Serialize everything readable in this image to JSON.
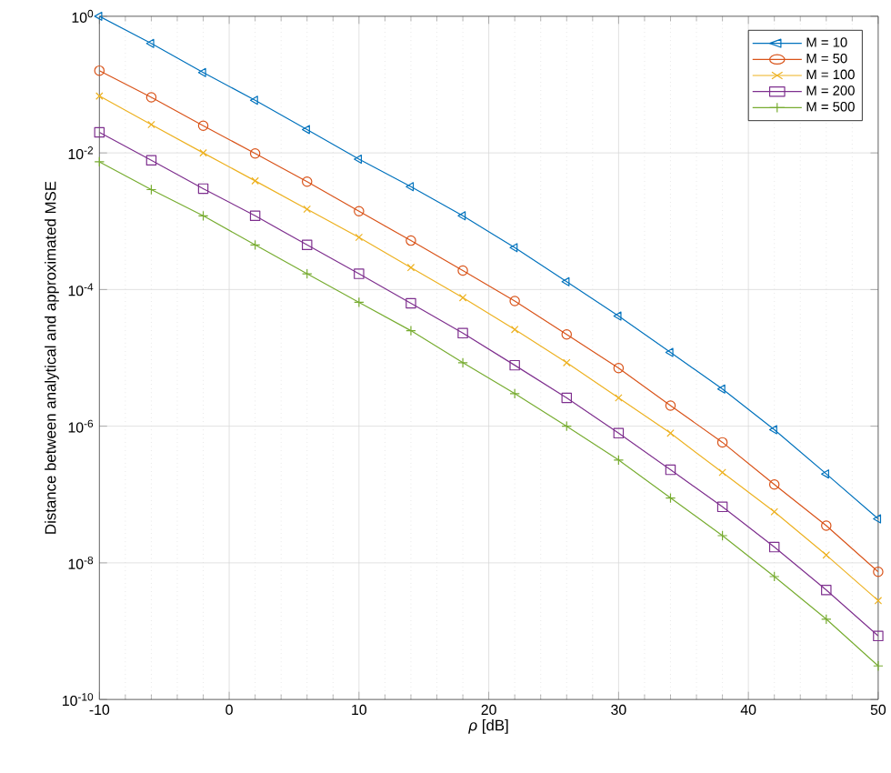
{
  "chart_data": {
    "type": "line",
    "xlabel": "*ρ* [dB]",
    "ylabel": "Distance between analytical and approximated MSE",
    "x": [
      -10,
      -6,
      -2,
      2,
      6,
      10,
      14,
      18,
      22,
      26,
      30,
      34,
      38,
      42,
      46,
      50
    ],
    "series": [
      {
        "name": "M = 10",
        "color": "#0072bd",
        "marker": "triangle",
        "values": [
          1.0,
          0.4,
          0.15,
          0.059,
          0.022,
          0.0081,
          0.0032,
          0.0012,
          0.00041,
          0.00013,
          4.1e-05,
          1.2e-05,
          3.5e-06,
          8.9e-07,
          2e-07,
          4.4e-08
        ]
      },
      {
        "name": "M = 50",
        "color": "#d95319",
        "marker": "circle",
        "values": [
          0.16,
          0.065,
          0.025,
          0.0098,
          0.0038,
          0.0014,
          0.00052,
          0.00019,
          6.8e-05,
          2.2e-05,
          7.1e-06,
          2e-06,
          5.8e-07,
          1.4e-07,
          3.5e-08,
          7.4e-09
        ]
      },
      {
        "name": "M = 100",
        "color": "#edb120",
        "marker": "cross",
        "values": [
          0.068,
          0.026,
          0.01,
          0.0039,
          0.0015,
          0.00058,
          0.00021,
          7.6e-05,
          2.6e-05,
          8.5e-06,
          2.6e-06,
          7.9e-07,
          2.1e-07,
          5.6e-08,
          1.3e-08,
          2.8e-09
        ]
      },
      {
        "name": "M = 200",
        "color": "#7e2f8e",
        "marker": "square",
        "values": [
          0.02,
          0.0078,
          0.003,
          0.0012,
          0.00045,
          0.00017,
          6.3e-05,
          2.3e-05,
          7.8e-06,
          2.6e-06,
          7.9e-07,
          2.3e-07,
          6.6e-08,
          1.7e-08,
          4e-09,
          8.5e-10
        ]
      },
      {
        "name": "M = 500",
        "color": "#77ac30",
        "marker": "plus",
        "values": [
          0.0074,
          0.0029,
          0.0012,
          0.00045,
          0.00017,
          6.5e-05,
          2.5e-05,
          8.5e-06,
          3e-06,
          1e-06,
          3.2e-07,
          8.9e-08,
          2.5e-08,
          6.3e-09,
          1.5e-09,
          3.1e-10
        ]
      }
    ],
    "xlim": [
      -10,
      50
    ],
    "xticks": [
      -10,
      0,
      10,
      20,
      30,
      40,
      50
    ],
    "ylim": [
      1e-10,
      1
    ],
    "yticks": [
      {
        "value": 1e-10,
        "label": "10$^{-10}$"
      },
      {
        "value": 1e-08,
        "label": "10$^{-8}$"
      },
      {
        "value": 1e-06,
        "label": "10$^{-6}$"
      },
      {
        "value": 0.0001,
        "label": "10$^{-4}$"
      },
      {
        "value": 0.01,
        "label": "10$^{-2}$"
      },
      {
        "value": 1,
        "label": "10$^{0}$"
      }
    ],
    "log": "y",
    "grid": true,
    "legend": "top right",
    "line_style": "solid"
  }
}
